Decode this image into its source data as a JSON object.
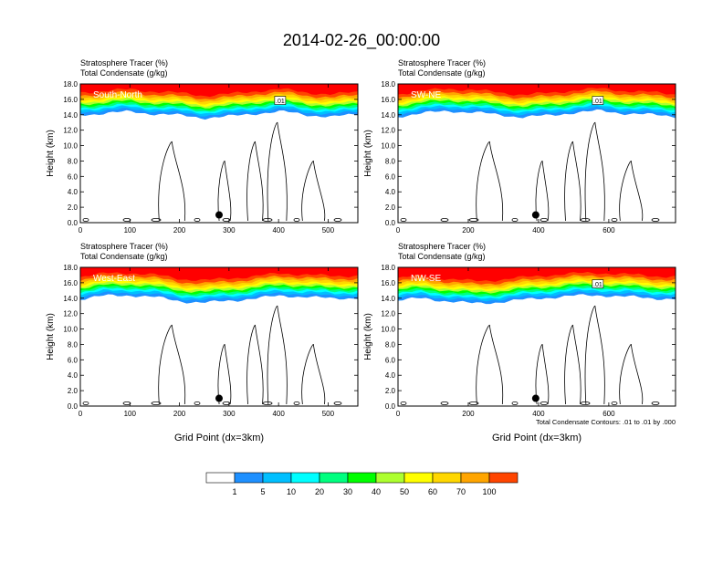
{
  "title": "2014-02-26_00:00:00",
  "legend": {
    "values": [
      "1",
      "5",
      "10",
      "20",
      "30",
      "40",
      "50",
      "60",
      "70",
      "100"
    ],
    "colors": [
      "#ffffff",
      "#1e90ff",
      "#00bfff",
      "#00ffff",
      "#00ff7f",
      "#00ff00",
      "#adff2f",
      "#ffff00",
      "#ffd700",
      "#ffa500",
      "#ff4500",
      "#ff0000"
    ]
  },
  "chart_data": [
    {
      "type": "heatmap",
      "label": "South-North",
      "line1": "Stratosphere Tracer   (%)",
      "line2": "Total Condensate   (g/kg)",
      "ylabel": "Height (km)",
      "xlabel": "",
      "xlim": [
        0,
        560
      ],
      "ylim": [
        0,
        18
      ],
      "xticks": [
        "0",
        "100",
        "200",
        "300",
        "400",
        "500"
      ],
      "xtick_values": [
        0,
        100,
        200,
        300,
        400,
        500
      ],
      "yticks": [
        "0.0",
        "2.0",
        "4.0",
        "6.0",
        "8.0",
        "10.0",
        "12.0",
        "14.0",
        "16.0",
        "18.0"
      ],
      "tropopause_km": [
        14.6,
        14.8,
        15.0,
        14.7,
        14.5,
        14.2,
        14.4,
        14.8,
        15.0,
        14.6,
        14.3,
        14.7
      ],
      "contour_label": ".01",
      "marker": {
        "x": 280,
        "y": 1.0
      }
    },
    {
      "type": "heatmap",
      "label": "SW-NE",
      "line1": "Stratosphere Tracer   (%)",
      "line2": "Total Condensate   (g/kg)",
      "ylabel": "Height (km)",
      "xlabel": "",
      "xlim": [
        0,
        790
      ],
      "ylim": [
        0,
        18
      ],
      "xticks": [
        "0",
        "200",
        "400",
        "600"
      ],
      "xtick_values": [
        0,
        200,
        400,
        600
      ],
      "yticks": [
        "0.0",
        "2.0",
        "4.0",
        "6.0",
        "8.0",
        "10.0",
        "12.0",
        "14.0",
        "16.0",
        "18.0"
      ],
      "tropopause_km": [
        14.4,
        14.8,
        15.1,
        14.9,
        14.6,
        14.3,
        14.5,
        14.9,
        15.1,
        14.8,
        14.6,
        14.4
      ],
      "contour_label": ".01",
      "marker": {
        "x": 392,
        "y": 1.0
      }
    },
    {
      "type": "heatmap",
      "label": "West-East",
      "line1": "Stratosphere Tracer   (%)",
      "line2": "Total Condensate   (g/kg)",
      "ylabel": "Height (km)",
      "xlabel": "Grid Point (dx=3km)",
      "xlim": [
        0,
        560
      ],
      "ylim": [
        0,
        18
      ],
      "xticks": [
        "0",
        "100",
        "200",
        "300",
        "400",
        "500"
      ],
      "xtick_values": [
        0,
        100,
        200,
        300,
        400,
        500
      ],
      "yticks": [
        "0.0",
        "2.0",
        "4.0",
        "6.0",
        "8.0",
        "10.0",
        "12.0",
        "14.0",
        "16.0",
        "18.0"
      ],
      "tropopause_km": [
        14.5,
        14.9,
        15.0,
        14.7,
        14.2,
        14.0,
        14.3,
        14.6,
        14.9,
        14.8,
        14.5,
        14.7
      ],
      "contour_label": "",
      "marker": {
        "x": 280,
        "y": 1.0
      }
    },
    {
      "type": "heatmap",
      "label": "NW-SE",
      "line1": "Stratosphere Tracer   (%)",
      "line2": "Total Condensate   (g/kg)",
      "ylabel": "Height (km)",
      "xlabel": "Grid Point (dx=3km)",
      "xlim": [
        0,
        790
      ],
      "ylim": [
        0,
        18
      ],
      "xticks": [
        "0",
        "200",
        "400",
        "600"
      ],
      "xtick_values": [
        0,
        200,
        400,
        600
      ],
      "yticks": [
        "0.0",
        "2.0",
        "4.0",
        "6.0",
        "8.0",
        "10.0",
        "12.0",
        "14.0",
        "16.0",
        "18.0"
      ],
      "tropopause_km": [
        14.3,
        14.6,
        14.2,
        13.9,
        14.1,
        14.4,
        14.7,
        14.9,
        15.0,
        14.8,
        14.6,
        14.5
      ],
      "contour_label": ".01",
      "marker": {
        "x": 392,
        "y": 1.0
      },
      "note": "Total Condensate Contours: .01 to .01 by .000"
    }
  ]
}
